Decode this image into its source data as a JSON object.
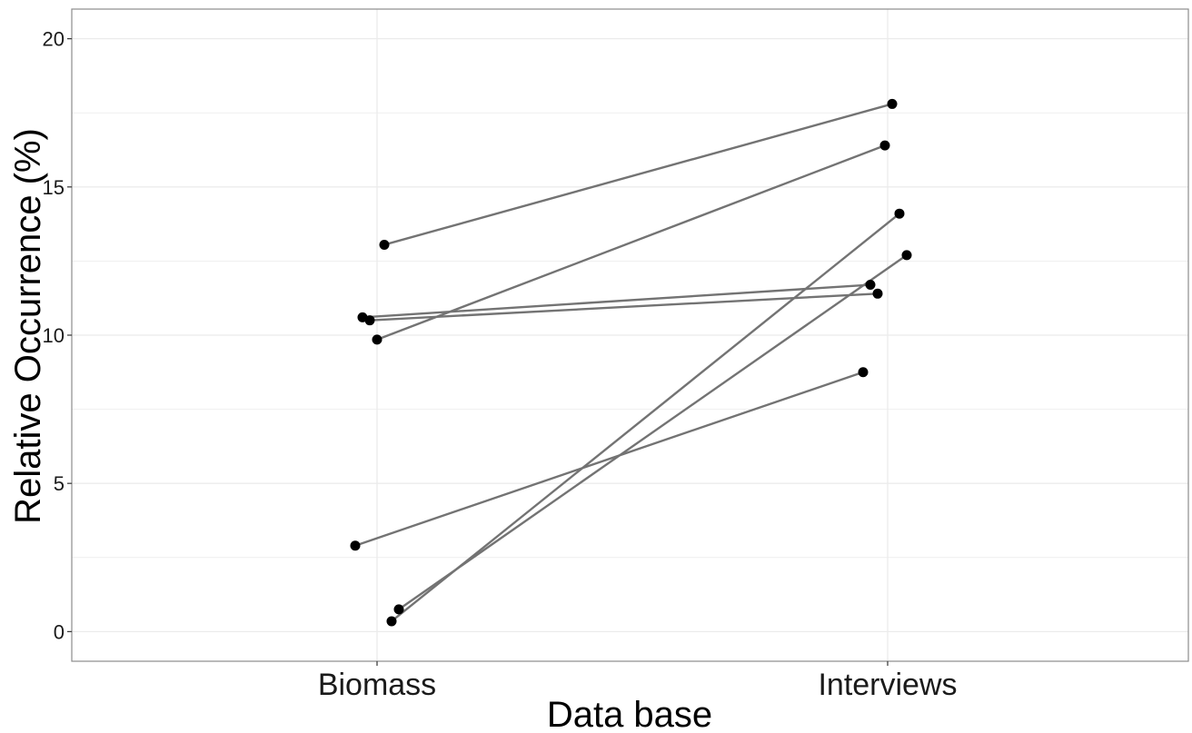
{
  "chart_data": {
    "type": "line",
    "title": "",
    "xlabel": "Data base",
    "ylabel": "Relative Occurrence (%)",
    "categories": [
      "Biomass",
      "Interviews"
    ],
    "ylim": [
      -1,
      21
    ],
    "yticks": [
      0,
      5,
      10,
      15,
      20
    ],
    "grid": true,
    "legend": "none",
    "series": [
      {
        "values": [
          13.05,
          17.8
        ]
      },
      {
        "values": [
          9.85,
          16.4
        ]
      },
      {
        "values": [
          10.6,
          11.7
        ]
      },
      {
        "values": [
          10.5,
          11.4
        ]
      },
      {
        "values": [
          2.9,
          8.75
        ]
      },
      {
        "values": [
          0.35,
          14.1
        ]
      },
      {
        "values": [
          0.75,
          12.7
        ]
      }
    ],
    "colors": {
      "line": "#737373",
      "point": "#000000",
      "grid": "#ebebeb",
      "border": "#8c8c8c"
    }
  }
}
